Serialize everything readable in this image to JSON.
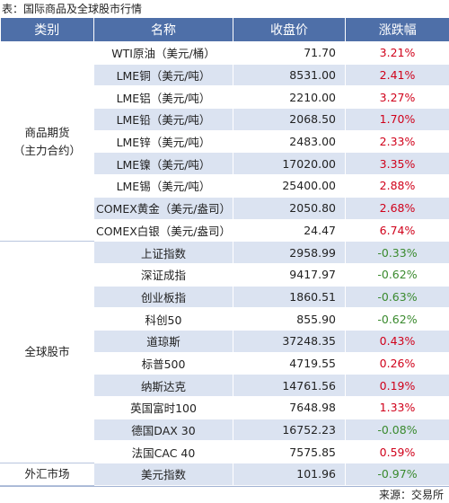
{
  "caption": "表：国际商品及全球股市行情",
  "headers": [
    "类别",
    "名称",
    "收盘价",
    "涨跌幅"
  ],
  "groups": [
    {
      "category": "商品期货\n（主力合约）",
      "rows": [
        {
          "name": "WTI原油（美元/桶）",
          "price": "71.70",
          "change": "3.21%",
          "dir": "up"
        },
        {
          "name": "LME铜（美元/吨）",
          "price": "8531.00",
          "change": "2.41%",
          "dir": "up"
        },
        {
          "name": "LME铝（美元/吨）",
          "price": "2210.00",
          "change": "3.27%",
          "dir": "up"
        },
        {
          "name": "LME铅（美元/吨）",
          "price": "2068.50",
          "change": "1.70%",
          "dir": "up"
        },
        {
          "name": "LME锌（美元/吨）",
          "price": "2483.00",
          "change": "2.33%",
          "dir": "up"
        },
        {
          "name": "LME镍（美元/吨）",
          "price": "17020.00",
          "change": "3.35%",
          "dir": "up"
        },
        {
          "name": "LME锡（美元/吨）",
          "price": "25400.00",
          "change": "2.88%",
          "dir": "up"
        },
        {
          "name": "COMEX黄金（美元/盎司）",
          "price": "2050.80",
          "change": "2.68%",
          "dir": "up"
        },
        {
          "name": "COMEX白银（美元/盎司）",
          "price": "24.47",
          "change": "6.74%",
          "dir": "up"
        }
      ]
    },
    {
      "category": "全球股市",
      "rows": [
        {
          "name": "上证指数",
          "price": "2958.99",
          "change": "-0.33%",
          "dir": "down"
        },
        {
          "name": "深证成指",
          "price": "9417.97",
          "change": "-0.62%",
          "dir": "down"
        },
        {
          "name": "创业板指",
          "price": "1860.51",
          "change": "-0.63%",
          "dir": "down"
        },
        {
          "name": "科创50",
          "price": "855.90",
          "change": "-0.62%",
          "dir": "down"
        },
        {
          "name": "道琼斯",
          "price": "37248.35",
          "change": "0.43%",
          "dir": "up"
        },
        {
          "name": "标普500",
          "price": "4719.55",
          "change": "0.26%",
          "dir": "up"
        },
        {
          "name": "纳斯达克",
          "price": "14761.56",
          "change": "0.19%",
          "dir": "up"
        },
        {
          "name": "英国富时100",
          "price": "7648.98",
          "change": "1.33%",
          "dir": "up"
        },
        {
          "name": "德国DAX 30",
          "price": "16752.23",
          "change": "-0.08%",
          "dir": "down"
        },
        {
          "name": "法国CAC 40",
          "price": "7575.85",
          "change": "0.59%",
          "dir": "up"
        }
      ]
    },
    {
      "category": "外汇市场",
      "rows": [
        {
          "name": "美元指数",
          "price": "101.96",
          "change": "-0.97%",
          "dir": "down"
        }
      ]
    }
  ],
  "colors": {
    "header_bg": "#4e6fa8",
    "stripe": "#dbe3f1",
    "up": "#d0021b",
    "down": "#3a8a2e"
  },
  "source": "来源：交易所"
}
